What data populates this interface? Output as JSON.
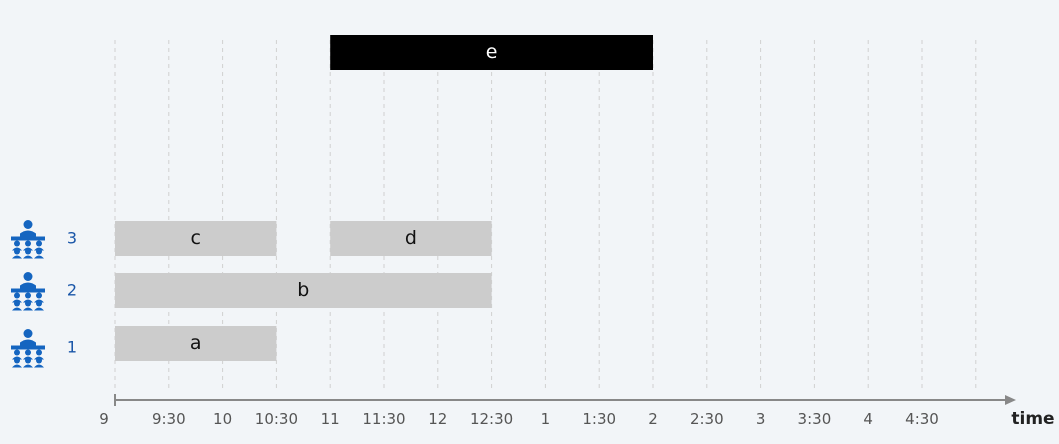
{
  "colors": {
    "background": "#f2f5f8",
    "interval": "#cccccc",
    "highlight": "#000000",
    "icon": "#1565c0",
    "row_label": "#1a56a8",
    "axis": "#888888",
    "grid": "#d0d0d0",
    "tick_text": "#555555"
  },
  "axis": {
    "label": "time",
    "ticks": [
      "9",
      "9:30",
      "10",
      "10:30",
      "11",
      "11:30",
      "12",
      "12:30",
      "1",
      "1:30",
      "2",
      "2:30",
      "3",
      "3:30",
      "4",
      "4:30"
    ]
  },
  "rooms": [
    {
      "label": "1",
      "icon": "classroom-icon"
    },
    {
      "label": "2",
      "icon": "classroom-icon"
    },
    {
      "label": "3",
      "icon": "classroom-icon"
    }
  ],
  "intervals": [
    {
      "label": "a",
      "start": 9,
      "end": 10.5,
      "room": 1
    },
    {
      "label": "b",
      "start": 9,
      "end": 12.5,
      "room": 2
    },
    {
      "label": "c",
      "start": 9,
      "end": 10.5,
      "room": 3
    },
    {
      "label": "d",
      "start": 11,
      "end": 12.5,
      "room": 3
    },
    {
      "label": "e",
      "start": 11,
      "end": 14,
      "highlighted": true
    }
  ]
}
